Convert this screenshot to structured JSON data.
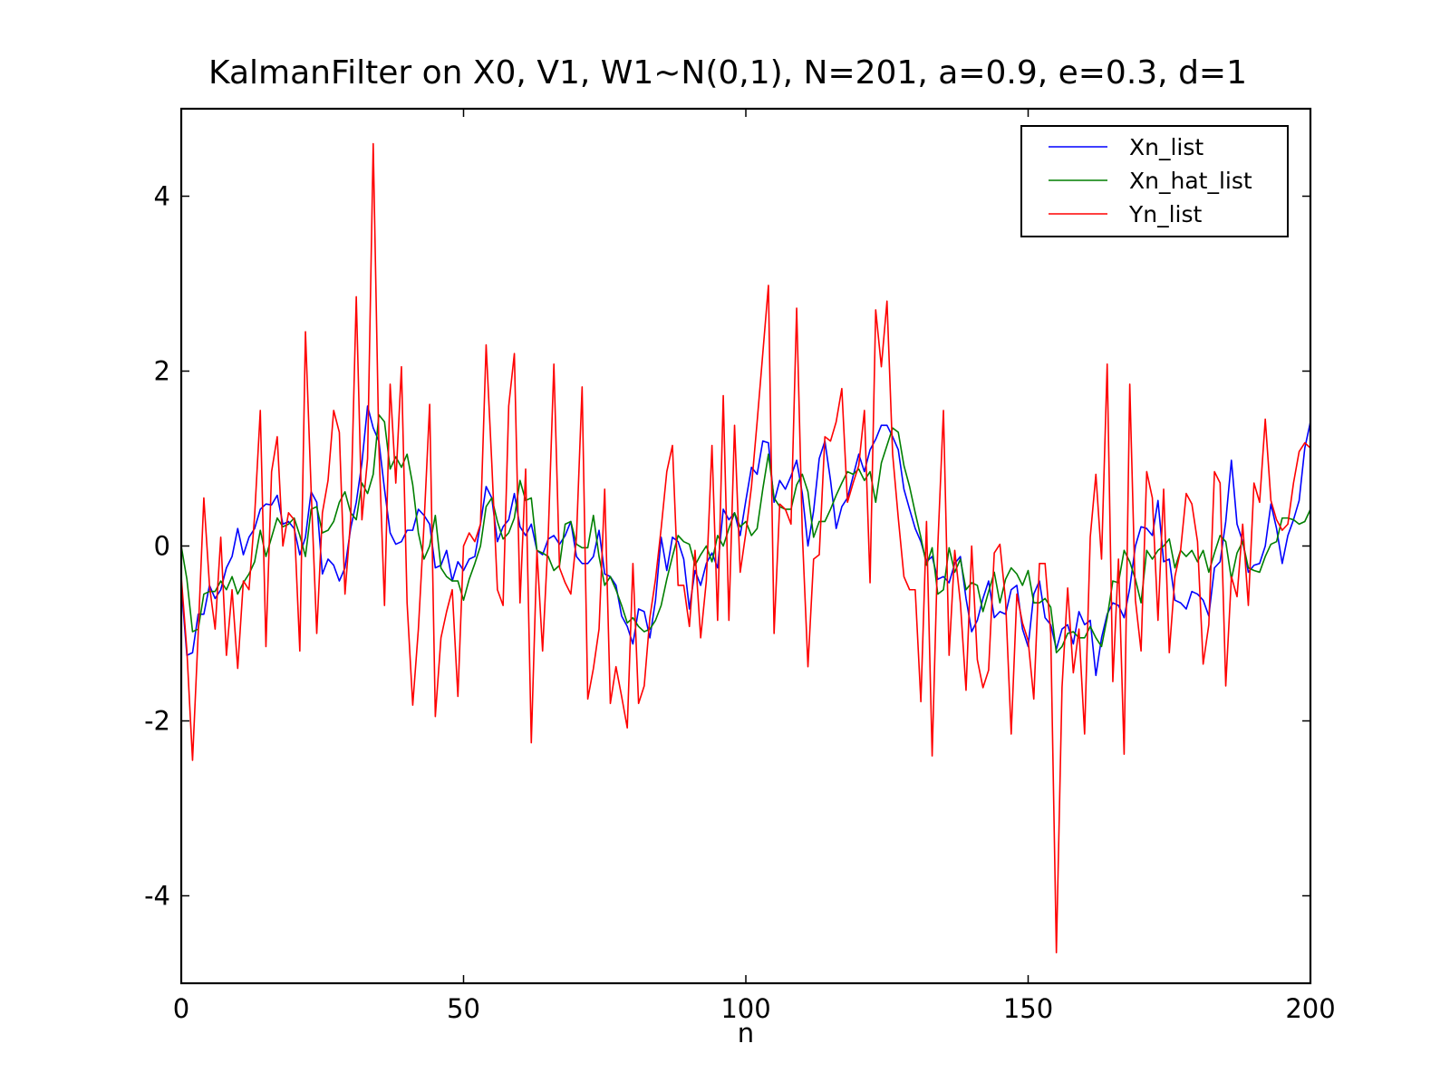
{
  "chart_data": {
    "type": "line",
    "title": "KalmanFilter on X0, V1, W1~N(0,1), N=201, a=0.9, e=0.3, d=1",
    "xlabel": "n",
    "ylabel": "",
    "xlim": [
      0,
      200
    ],
    "ylim": [
      -5,
      5
    ],
    "x_ticks": [
      0,
      50,
      100,
      150,
      200
    ],
    "x_tick_labels": [
      "0",
      "50",
      "100",
      "150",
      "200"
    ],
    "y_ticks": [
      4,
      2,
      0,
      -2,
      -4
    ],
    "y_tick_labels": [
      "4",
      "2",
      "0",
      "-2",
      "-4"
    ],
    "grid": false,
    "legend_position": "top-right",
    "x_start": 0,
    "x_step": 1,
    "series": [
      {
        "name": "Xn_list",
        "color": "#0000ff",
        "values": [
          -0.45,
          -1.25,
          -1.22,
          -0.78,
          -0.78,
          -0.45,
          -0.6,
          -0.5,
          -0.25,
          -0.12,
          0.2,
          -0.1,
          0.1,
          0.2,
          0.42,
          0.48,
          0.47,
          0.58,
          0.25,
          0.28,
          0.2,
          -0.1,
          0.1,
          0.62,
          0.5,
          -0.32,
          -0.15,
          -0.22,
          -0.4,
          -0.25,
          0.2,
          0.5,
          0.95,
          1.6,
          1.35,
          1.2,
          0.65,
          0.15,
          0.02,
          0.05,
          0.18,
          0.18,
          0.42,
          0.35,
          0.25,
          -0.25,
          -0.22,
          -0.05,
          -0.4,
          -0.18,
          -0.28,
          -0.15,
          -0.12,
          0.25,
          0.68,
          0.55,
          0.05,
          0.22,
          0.3,
          0.6,
          0.22,
          0.12,
          0.25,
          -0.05,
          -0.1,
          0.08,
          0.12,
          0.02,
          0.12,
          0.28,
          -0.12,
          -0.2,
          -0.2,
          -0.12,
          0.18,
          -0.32,
          -0.35,
          -0.45,
          -0.8,
          -0.92,
          -1.12,
          -0.72,
          -0.75,
          -1.05,
          -0.62,
          0.1,
          -0.28,
          0.1,
          0.05,
          -0.15,
          -0.72,
          -0.28,
          -0.45,
          -0.2,
          -0.08,
          -0.25,
          0.42,
          0.3,
          0.38,
          0.12,
          0.52,
          0.9,
          0.82,
          1.2,
          1.18,
          0.5,
          0.75,
          0.65,
          0.8,
          0.98,
          0.6,
          0.0,
          0.4,
          1.0,
          1.2,
          0.75,
          0.2,
          0.45,
          0.55,
          0.8,
          1.05,
          0.85,
          1.1,
          1.22,
          1.38,
          1.38,
          1.25,
          1.1,
          0.65,
          0.42,
          0.2,
          0.05,
          -0.18,
          -0.12,
          -0.38,
          -0.35,
          -0.42,
          -0.2,
          -0.12,
          -0.6,
          -0.98,
          -0.85,
          -0.6,
          -0.4,
          -0.82,
          -0.75,
          -0.78,
          -0.5,
          -0.45,
          -0.95,
          -1.15,
          -0.55,
          -0.4,
          -0.82,
          -0.9,
          -1.18,
          -0.95,
          -0.9,
          -1.12,
          -0.75,
          -0.9,
          -0.85,
          -1.48,
          -1.05,
          -0.78,
          -0.65,
          -0.68,
          -0.82,
          -0.48,
          0.0,
          0.22,
          0.2,
          0.12,
          0.52,
          -0.18,
          -0.15,
          -0.62,
          -0.65,
          -0.72,
          -0.52,
          -0.55,
          -0.62,
          -0.8,
          -0.25,
          -0.18,
          0.28,
          0.98,
          0.25,
          0.05,
          -0.3,
          -0.22,
          -0.2,
          0.0,
          0.48,
          0.2,
          -0.2,
          0.12,
          0.3,
          0.52,
          1.12,
          1.42,
          1.35
        ]
      },
      {
        "name": "Xn_hat_list",
        "color": "#007f00",
        "values": [
          0.0,
          -0.38,
          -0.98,
          -0.95,
          -0.55,
          -0.52,
          -0.52,
          -0.4,
          -0.5,
          -0.35,
          -0.55,
          -0.42,
          -0.32,
          -0.18,
          0.18,
          -0.12,
          0.1,
          0.32,
          0.22,
          0.25,
          0.32,
          0.12,
          -0.12,
          0.42,
          0.45,
          0.15,
          0.18,
          0.28,
          0.5,
          0.62,
          0.38,
          0.3,
          0.72,
          0.6,
          0.82,
          1.5,
          1.42,
          0.88,
          1.02,
          0.9,
          1.05,
          0.7,
          0.15,
          -0.15,
          0.0,
          0.35,
          -0.25,
          -0.35,
          -0.4,
          -0.4,
          -0.62,
          -0.38,
          -0.2,
          0.0,
          0.45,
          0.55,
          0.28,
          0.08,
          0.15,
          0.32,
          0.75,
          0.52,
          0.55,
          -0.05,
          -0.08,
          -0.12,
          -0.28,
          -0.22,
          0.25,
          0.28,
          0.02,
          -0.02,
          -0.02,
          0.35,
          -0.12,
          -0.45,
          -0.35,
          -0.5,
          -0.68,
          -0.88,
          -0.82,
          -0.92,
          -0.98,
          -0.95,
          -0.85,
          -0.68,
          -0.38,
          -0.12,
          0.12,
          0.05,
          0.02,
          -0.22,
          -0.1,
          0.0,
          -0.18,
          0.12,
          0.0,
          0.2,
          0.38,
          0.22,
          0.28,
          0.12,
          0.2,
          0.65,
          1.05,
          0.55,
          0.45,
          0.42,
          0.42,
          0.7,
          0.82,
          0.62,
          0.1,
          0.28,
          0.28,
          0.42,
          0.58,
          0.72,
          0.85,
          0.82,
          0.88,
          0.75,
          0.85,
          0.5,
          0.95,
          1.15,
          1.35,
          1.3,
          0.92,
          0.68,
          0.38,
          0.1,
          -0.22,
          -0.02,
          -0.55,
          -0.5,
          -0.02,
          -0.3,
          -0.15,
          -0.5,
          -0.42,
          -0.45,
          -0.75,
          -0.52,
          -0.3,
          -0.65,
          -0.38,
          -0.25,
          -0.32,
          -0.45,
          -0.28,
          -0.65,
          -0.65,
          -0.6,
          -0.7,
          -1.22,
          -1.15,
          -1.0,
          -0.98,
          -1.05,
          -1.05,
          -0.92,
          -1.05,
          -1.15,
          -0.82,
          -0.4,
          -0.42,
          -0.05,
          -0.18,
          -0.38,
          -0.65,
          -0.05,
          -0.15,
          -0.05,
          0.0,
          0.08,
          -0.25,
          -0.05,
          -0.12,
          -0.05,
          -0.18,
          -0.05,
          -0.3,
          -0.08,
          0.12,
          0.05,
          -0.38,
          -0.08,
          0.05,
          -0.25,
          -0.28,
          -0.3,
          -0.12,
          0.02,
          0.05,
          0.32,
          0.32,
          0.3,
          0.25,
          0.28,
          0.42,
          0.52,
          0.58
        ]
      },
      {
        "name": "Yn_list",
        "color": "#ff0000",
        "values": [
          -0.35,
          -1.2,
          -2.45,
          -1.0,
          0.55,
          -0.45,
          -0.95,
          0.1,
          -1.25,
          -0.5,
          -1.4,
          -0.4,
          -0.5,
          0.35,
          1.55,
          -1.15,
          0.85,
          1.25,
          0.0,
          0.38,
          0.3,
          -1.2,
          2.45,
          0.65,
          -1.0,
          0.38,
          0.75,
          1.55,
          1.3,
          -0.55,
          0.3,
          2.85,
          0.3,
          1.0,
          4.6,
          1.15,
          -0.68,
          1.85,
          0.72,
          2.05,
          -0.65,
          -1.82,
          -0.95,
          0.25,
          1.62,
          -1.95,
          -1.05,
          -0.75,
          -0.5,
          -1.72,
          0.0,
          0.15,
          0.05,
          0.25,
          2.3,
          0.95,
          -0.5,
          -0.68,
          1.6,
          2.2,
          -0.65,
          0.88,
          -2.25,
          -0.05,
          -1.2,
          0.12,
          2.08,
          -0.25,
          -0.42,
          -0.55,
          0.1,
          1.82,
          -1.75,
          -1.4,
          -0.95,
          0.65,
          -1.8,
          -1.38,
          -1.72,
          -2.08,
          -0.2,
          -1.8,
          -1.6,
          -0.82,
          -0.38,
          0.2,
          0.85,
          1.15,
          -0.45,
          -0.45,
          -0.92,
          -0.05,
          -1.05,
          -0.4,
          1.15,
          -0.85,
          1.72,
          -0.85,
          1.38,
          -0.3,
          0.15,
          0.68,
          1.42,
          2.2,
          2.98,
          -1.0,
          0.48,
          0.42,
          0.25,
          2.72,
          0.15,
          -1.38,
          -0.15,
          -0.1,
          1.25,
          1.2,
          1.42,
          1.8,
          0.5,
          0.72,
          0.92,
          1.55,
          -0.42,
          2.7,
          2.05,
          2.8,
          1.05,
          0.32,
          -0.35,
          -0.5,
          -0.5,
          -1.78,
          0.28,
          -2.4,
          0.0,
          1.55,
          -1.25,
          -0.05,
          -0.65,
          -1.65,
          0.0,
          -1.3,
          -1.62,
          -1.42,
          -0.08,
          0.02,
          -0.62,
          -2.15,
          -0.55,
          -0.88,
          -1.08,
          -1.75,
          -0.2,
          -0.2,
          -1.0,
          -4.65,
          -1.62,
          -0.48,
          -1.45,
          -0.95,
          -2.15,
          0.1,
          0.82,
          -0.15,
          2.08,
          -1.55,
          -0.15,
          -2.38,
          1.85,
          -0.62,
          -1.2,
          0.85,
          0.55,
          -0.85,
          0.65,
          -1.22,
          -0.35,
          -0.05,
          0.6,
          0.48,
          0.05,
          -1.35,
          -0.9,
          0.85,
          0.72,
          -1.6,
          -0.35,
          -0.58,
          0.25,
          -0.68,
          0.72,
          0.5,
          1.45,
          0.52,
          0.3,
          0.18,
          0.25,
          0.72,
          1.08,
          1.18,
          1.12
        ]
      }
    ]
  }
}
